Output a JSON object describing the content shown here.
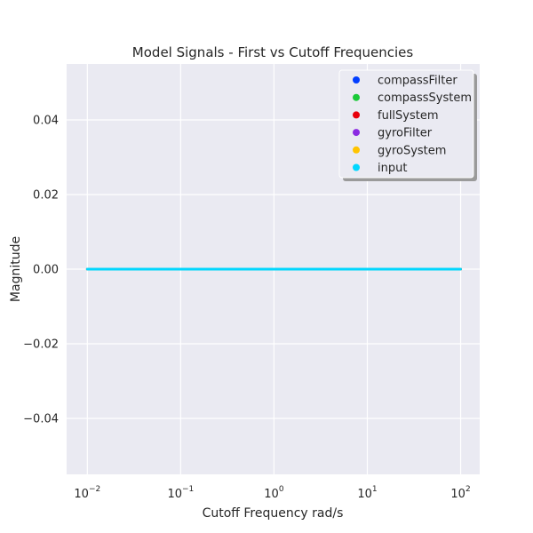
{
  "chart_data": {
    "type": "scatter",
    "title": "Model Signals - First vs Cutoff Frequencies",
    "xlabel": "Cutoff Frequency rad/s",
    "ylabel": "Magnitude",
    "xscale": "log",
    "xlim": [
      0.006,
      160
    ],
    "ylim": [
      -0.055,
      0.055
    ],
    "xticks": [
      {
        "value": 0.01,
        "base": "10",
        "exp": "−2"
      },
      {
        "value": 0.1,
        "base": "10",
        "exp": "−1"
      },
      {
        "value": 1,
        "base": "10",
        "exp": "0"
      },
      {
        "value": 10,
        "base": "10",
        "exp": "1"
      },
      {
        "value": 100,
        "base": "10",
        "exp": "2"
      }
    ],
    "yticks": [
      {
        "value": 0.04,
        "label": "0.04"
      },
      {
        "value": 0.02,
        "label": "0.02"
      },
      {
        "value": 0.0,
        "label": "0.00"
      },
      {
        "value": -0.02,
        "label": "−0.02"
      },
      {
        "value": -0.04,
        "label": "−0.04"
      }
    ],
    "grid": true,
    "legend_position": "top-right",
    "x_range": {
      "start": 0.01,
      "end": 100,
      "points": 1000
    },
    "series": [
      {
        "name": "compassFilter",
        "color": "#023eff",
        "value": 0.0
      },
      {
        "name": "compassSystem",
        "color": "#1ac938",
        "value": 0.0
      },
      {
        "name": "fullSystem",
        "color": "#e8000b",
        "value": 0.0
      },
      {
        "name": "gyroFilter",
        "color": "#8b2be2",
        "value": 0.0
      },
      {
        "name": "gyroSystem",
        "color": "#ffc400",
        "value": 0.0
      },
      {
        "name": "input",
        "color": "#00d7ff",
        "value": 0.0
      }
    ]
  }
}
